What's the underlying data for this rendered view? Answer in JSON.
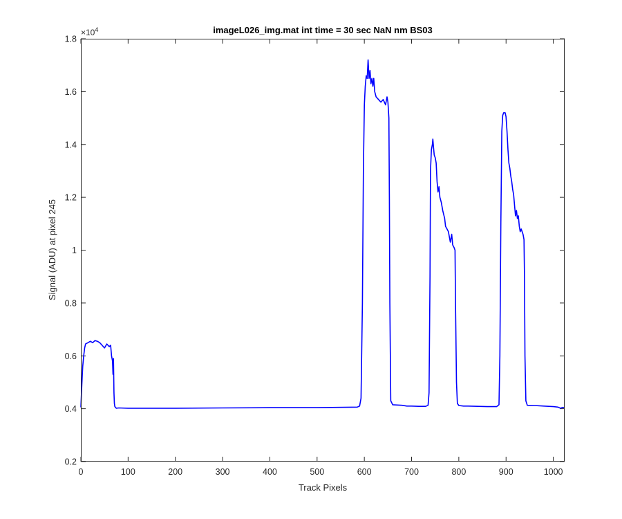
{
  "chart_data": {
    "type": "line",
    "title": "imageL026_img.mat int time = 30 sec  NaN nm BS03",
    "xlabel": "Track Pixels",
    "ylabel": "Signal (ADU) at pixel 245",
    "xlim": [
      0,
      1024
    ],
    "ylim": [
      2000,
      18000
    ],
    "xticks": [
      0,
      100,
      200,
      300,
      400,
      500,
      600,
      700,
      800,
      900,
      1000
    ],
    "yticks": [
      0.2,
      0.4,
      0.6,
      0.8,
      1,
      1.2,
      1.4,
      1.6,
      1.8
    ],
    "ytick_labels": [
      "0.2",
      "0.4",
      "0.6",
      "0.8",
      "1",
      "1.2",
      "1.4",
      "1.6",
      "1.8"
    ],
    "y_multiplier": {
      "base": "×10",
      "exp": "4"
    },
    "grid": false,
    "line_color": "#0000ff",
    "series": [
      {
        "points": [
          [
            0,
            4050
          ],
          [
            2,
            4900
          ],
          [
            4,
            5600
          ],
          [
            6,
            6000
          ],
          [
            8,
            6300
          ],
          [
            10,
            6450
          ],
          [
            15,
            6500
          ],
          [
            20,
            6550
          ],
          [
            25,
            6500
          ],
          [
            30,
            6580
          ],
          [
            35,
            6550
          ],
          [
            40,
            6500
          ],
          [
            45,
            6400
          ],
          [
            50,
            6300
          ],
          [
            55,
            6450
          ],
          [
            60,
            6350
          ],
          [
            63,
            6400
          ],
          [
            65,
            6000
          ],
          [
            67,
            5800
          ],
          [
            68,
            5300
          ],
          [
            69,
            5900
          ],
          [
            70,
            4600
          ],
          [
            71,
            4200
          ],
          [
            72,
            4080
          ],
          [
            75,
            4020
          ],
          [
            80,
            4030
          ],
          [
            100,
            4020
          ],
          [
            200,
            4020
          ],
          [
            300,
            4030
          ],
          [
            400,
            4040
          ],
          [
            500,
            4040
          ],
          [
            585,
            4060
          ],
          [
            590,
            4100
          ],
          [
            593,
            4400
          ],
          [
            596,
            8000
          ],
          [
            598,
            13000
          ],
          [
            600,
            15500
          ],
          [
            602,
            16200
          ],
          [
            604,
            16600
          ],
          [
            606,
            16500
          ],
          [
            608,
            17200
          ],
          [
            610,
            16500
          ],
          [
            612,
            16800
          ],
          [
            614,
            16300
          ],
          [
            616,
            16500
          ],
          [
            618,
            16200
          ],
          [
            620,
            16500
          ],
          [
            622,
            16000
          ],
          [
            625,
            15800
          ],
          [
            630,
            15700
          ],
          [
            635,
            15600
          ],
          [
            640,
            15700
          ],
          [
            645,
            15500
          ],
          [
            648,
            15800
          ],
          [
            650,
            15600
          ],
          [
            652,
            15000
          ],
          [
            653,
            12000
          ],
          [
            654,
            8000
          ],
          [
            656,
            4300
          ],
          [
            660,
            4150
          ],
          [
            670,
            4140
          ],
          [
            680,
            4130
          ],
          [
            690,
            4100
          ],
          [
            700,
            4100
          ],
          [
            715,
            4090
          ],
          [
            730,
            4090
          ],
          [
            735,
            4130
          ],
          [
            737,
            4600
          ],
          [
            739,
            9000
          ],
          [
            740,
            13000
          ],
          [
            742,
            13800
          ],
          [
            744,
            14000
          ],
          [
            745,
            14200
          ],
          [
            747,
            13800
          ],
          [
            748,
            13600
          ],
          [
            750,
            13500
          ],
          [
            752,
            13300
          ],
          [
            754,
            12600
          ],
          [
            756,
            12200
          ],
          [
            758,
            12400
          ],
          [
            760,
            12000
          ],
          [
            763,
            11800
          ],
          [
            766,
            11500
          ],
          [
            770,
            11200
          ],
          [
            772,
            10900
          ],
          [
            775,
            10800
          ],
          [
            778,
            10700
          ],
          [
            780,
            10500
          ],
          [
            782,
            10300
          ],
          [
            785,
            10600
          ],
          [
            787,
            10200
          ],
          [
            790,
            10100
          ],
          [
            792,
            10000
          ],
          [
            793,
            8000
          ],
          [
            795,
            5000
          ],
          [
            797,
            4200
          ],
          [
            800,
            4120
          ],
          [
            810,
            4100
          ],
          [
            820,
            4100
          ],
          [
            840,
            4090
          ],
          [
            860,
            4080
          ],
          [
            880,
            4080
          ],
          [
            885,
            4150
          ],
          [
            887,
            6000
          ],
          [
            889,
            11000
          ],
          [
            891,
            14500
          ],
          [
            893,
            15100
          ],
          [
            895,
            15200
          ],
          [
            898,
            15200
          ],
          [
            900,
            15050
          ],
          [
            902,
            14500
          ],
          [
            904,
            13800
          ],
          [
            906,
            13300
          ],
          [
            908,
            13100
          ],
          [
            910,
            12800
          ],
          [
            912,
            12600
          ],
          [
            914,
            12300
          ],
          [
            916,
            12100
          ],
          [
            918,
            11700
          ],
          [
            920,
            11300
          ],
          [
            922,
            11500
          ],
          [
            924,
            11200
          ],
          [
            926,
            11300
          ],
          [
            928,
            10900
          ],
          [
            930,
            10700
          ],
          [
            932,
            10800
          ],
          [
            934,
            10700
          ],
          [
            936,
            10600
          ],
          [
            938,
            10400
          ],
          [
            939,
            9000
          ],
          [
            940,
            6000
          ],
          [
            942,
            4300
          ],
          [
            945,
            4130
          ],
          [
            960,
            4120
          ],
          [
            980,
            4100
          ],
          [
            1000,
            4080
          ],
          [
            1010,
            4060
          ],
          [
            1015,
            4020
          ],
          [
            1020,
            4050
          ],
          [
            1024,
            4030
          ]
        ]
      }
    ]
  }
}
